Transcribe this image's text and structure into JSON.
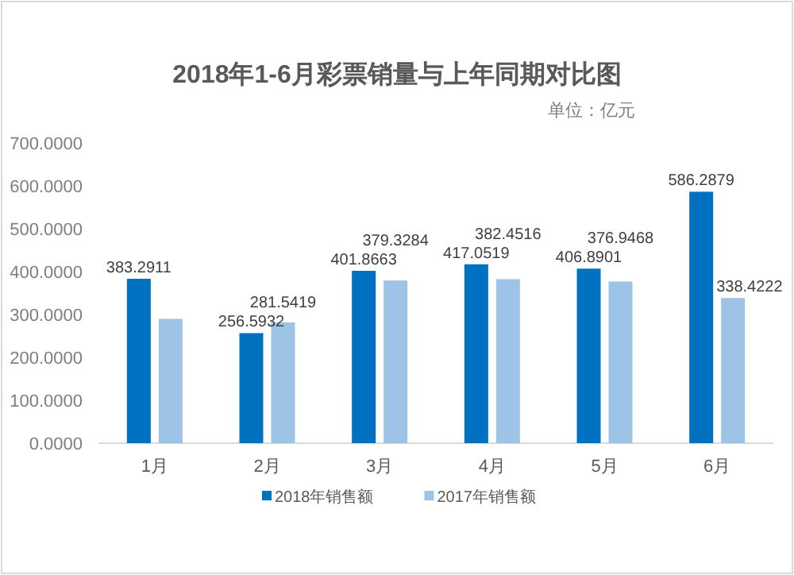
{
  "chart_data": {
    "type": "bar",
    "title": "2018年1-6月彩票销量与上年同期对比图",
    "subtitle": "单位：亿元",
    "categories": [
      "1月",
      "2月",
      "3月",
      "4月",
      "5月",
      "6月"
    ],
    "series": [
      {
        "name": "2018年销售额",
        "color": "#0070c0",
        "values": [
          383.2911,
          256.5932,
          401.8663,
          417.0519,
          406.8901,
          586.2879
        ],
        "value_labels": [
          "383.2911",
          "256.5932",
          "401.8663",
          "417.0519",
          "406.8901",
          "586.2879"
        ]
      },
      {
        "name": "2017年销售额",
        "color": "#9dc3e6",
        "values": [
          290,
          281.5419,
          379.3284,
          382.4516,
          376.9468,
          338.4222
        ],
        "value_labels": [
          null,
          "281.5419",
          "379.3284",
          "382.4516",
          "376.9468",
          "338.4222"
        ]
      }
    ],
    "ylim": [
      0,
      700
    ],
    "yticks": [
      {
        "value": 0,
        "label": "0.0000"
      },
      {
        "value": 100,
        "label": "100.0000"
      },
      {
        "value": 200,
        "label": "200.0000"
      },
      {
        "value": 300,
        "label": "300.0000"
      },
      {
        "value": 400,
        "label": "400.0000"
      },
      {
        "value": 500,
        "label": "500.0000"
      },
      {
        "value": 600,
        "label": "600.0000"
      },
      {
        "value": 700,
        "label": "700.0000"
      }
    ],
    "grid": false,
    "legend": "bottom"
  }
}
